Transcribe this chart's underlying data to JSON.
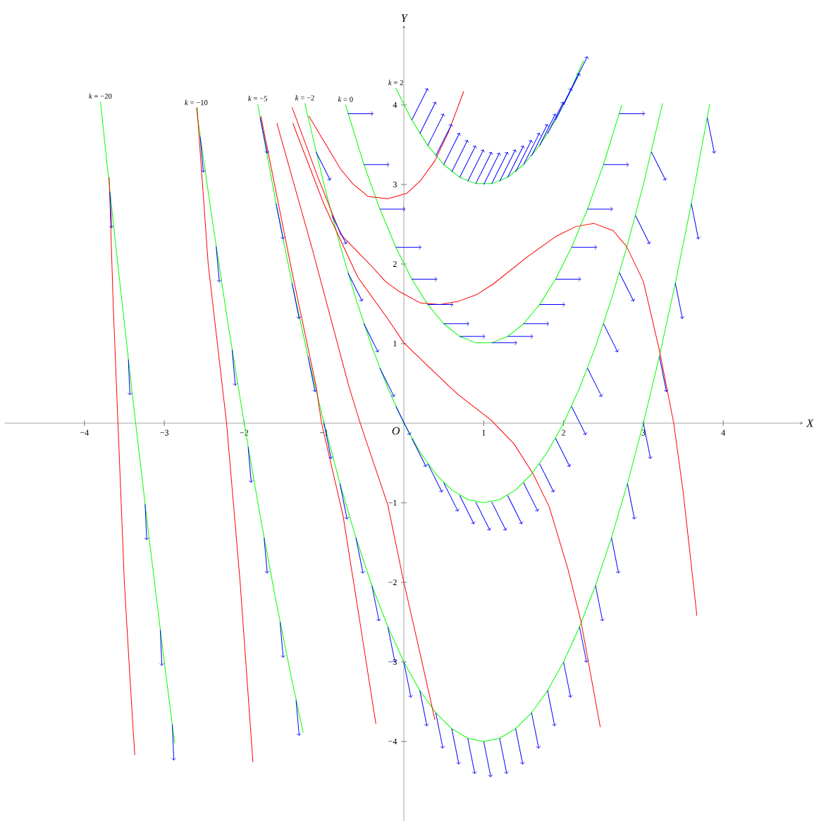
{
  "chart_data": {
    "type": "line",
    "xlabel": "X",
    "ylabel": "Y",
    "xlim": [
      -5,
      5
    ],
    "ylim": [
      -5,
      5
    ],
    "xticks": [
      {
        "value": -4,
        "label": "−4"
      },
      {
        "value": -3,
        "label": "−3"
      },
      {
        "value": -2,
        "label": "−2"
      },
      {
        "value": -1,
        "label": "−1"
      },
      {
        "value": 1,
        "label": "1"
      },
      {
        "value": 2,
        "label": "2"
      },
      {
        "value": 3,
        "label": "3"
      },
      {
        "value": 4,
        "label": "4"
      }
    ],
    "yticks": [
      {
        "value": -4,
        "label": "−4"
      },
      {
        "value": -3,
        "label": "−3"
      },
      {
        "value": -2,
        "label": "−2"
      },
      {
        "value": -1,
        "label": "−1"
      },
      {
        "value": 1,
        "label": "1"
      },
      {
        "value": 2,
        "label": "2"
      },
      {
        "value": 3,
        "label": "3"
      },
      {
        "value": 4,
        "label": "4"
      }
    ],
    "annotations": [
      {
        "text": "O",
        "x": 0,
        "y": 0
      }
    ],
    "series": [
      {
        "name": "*k* = −20",
        "color": "#00ff00",
        "x": [
          -3.8,
          -3.6,
          -3.4,
          -3.2,
          -3.0,
          -2.87
        ],
        "values": [
          4.04,
          2.16,
          0.36,
          -1.36,
          -3.0,
          -4.02
        ]
      },
      {
        "name": "*k* = −10",
        "color": "#00ff00",
        "x": [
          -2.6,
          -2.4,
          -2.2,
          -2.0,
          -1.8,
          -1.6,
          -1.4,
          -1.26
        ],
        "values": [
          3.96,
          2.56,
          1.24,
          0.0,
          -1.16,
          -2.24,
          -3.24,
          -3.89
        ]
      },
      {
        "name": "*k* = −5",
        "color": "#00ff00",
        "x": [
          -1.83,
          -1.6,
          -1.4,
          -1.2,
          -1.0,
          -0.8,
          -0.6,
          -0.4,
          -0.2,
          0,
          0.2,
          0.4,
          0.6,
          0.8,
          1.0,
          1.2,
          1.4,
          1.6,
          1.8,
          2.0,
          2.2,
          2.4,
          2.6,
          2.8,
          3.0,
          3.2,
          3.4,
          3.6,
          3.83
        ],
        "values": [
          4.01,
          2.76,
          1.76,
          0.84,
          0.0,
          -0.76,
          -1.44,
          -2.04,
          -2.56,
          -3.0,
          -3.36,
          -3.64,
          -3.84,
          -3.96,
          -4.0,
          -3.96,
          -3.84,
          -3.64,
          -3.36,
          -3.0,
          -2.56,
          -2.04,
          -1.44,
          -0.76,
          0.0,
          0.84,
          1.76,
          2.76,
          4.01
        ]
      },
      {
        "name": "*k* = −2",
        "color": "#00ff00",
        "x": [
          -1.24,
          -1.0,
          -0.8,
          -0.6,
          -0.4,
          -0.2,
          0,
          0.2,
          0.4,
          0.6,
          0.8,
          1.0,
          1.2,
          1.4,
          1.6,
          1.8,
          2.0,
          2.2,
          2.4,
          2.6,
          2.8,
          3.0,
          3.24
        ],
        "values": [
          4.02,
          3.0,
          2.24,
          1.56,
          0.96,
          0.44,
          0.0,
          -0.36,
          -0.64,
          -0.84,
          -0.96,
          -1.0,
          -0.96,
          -0.84,
          -0.64,
          -0.36,
          0.0,
          0.44,
          0.96,
          1.56,
          2.24,
          3.0,
          4.02
        ]
      },
      {
        "name": "*k* = 0",
        "color": "#00ff00",
        "x": [
          -0.73,
          -0.5,
          -0.3,
          -0.1,
          0.1,
          0.3,
          0.5,
          0.7,
          0.9,
          1.1,
          1.3,
          1.5,
          1.7,
          1.9,
          2.1,
          2.3,
          2.5,
          2.73
        ],
        "values": [
          4.0,
          3.25,
          2.69,
          2.21,
          1.81,
          1.49,
          1.25,
          1.09,
          1.01,
          1.01,
          1.09,
          1.25,
          1.49,
          1.81,
          2.21,
          2.69,
          3.25,
          4.0
        ]
      },
      {
        "name": "*k* = 2",
        "color": "#00ff00",
        "x": [
          -0.1,
          0.1,
          0.3,
          0.5,
          0.7,
          0.9,
          1.1,
          1.3,
          1.5,
          1.7,
          1.9,
          2.1,
          2.25
        ],
        "values": [
          4.21,
          3.81,
          3.49,
          3.25,
          3.09,
          3.01,
          3.01,
          3.09,
          3.25,
          3.49,
          3.81,
          4.21,
          4.56
        ]
      },
      {
        "color": "#ff0000",
        "x": [
          -3.69,
          -3.64,
          -3.58,
          -3.5,
          -3.43,
          -3.37
        ],
        "values": [
          3.09,
          1.5,
          0.0,
          -2.0,
          -3.2,
          -4.17
        ]
      },
      {
        "color": "#ff0000",
        "x": [
          -2.59,
          -2.45,
          -2.22,
          -2.05,
          -1.89
        ],
        "values": [
          3.97,
          2.0,
          0.0,
          -2.0,
          -4.26
        ]
      },
      {
        "color": "#ff0000",
        "x": [
          -1.79,
          -1.4,
          -1.1,
          -1.03,
          -0.76,
          -0.55,
          -0.35
        ],
        "values": [
          3.86,
          1.9,
          0.47,
          0.0,
          -1.17,
          -2.5,
          -3.78
        ]
      },
      {
        "color": "#ff0000",
        "x": [
          -1.59,
          -1.15,
          -0.69,
          -0.55,
          -0.2,
          0,
          0.2,
          0.39
        ],
        "values": [
          3.77,
          2.2,
          0.47,
          0.01,
          -1.03,
          -2.0,
          -2.88,
          -3.73
        ]
      },
      {
        "color": "#ff0000",
        "x": [
          -1.39,
          -1.0,
          -0.58,
          -0.2,
          0,
          0.3,
          0.56,
          0.68,
          1.09,
          1.38,
          1.62,
          1.82,
          2.06,
          2.22,
          2.46
        ],
        "values": [
          3.77,
          2.75,
          1.84,
          1.31,
          1.01,
          0.72,
          0.47,
          0.36,
          0.04,
          -0.26,
          -0.64,
          -1.05,
          -1.85,
          -2.5,
          -3.82
        ]
      },
      {
        "color": "#ff0000",
        "x": [
          -1.4,
          -1.08,
          -0.79,
          -0.41,
          -0.23,
          -0.05,
          0.21,
          0.45,
          0.68,
          0.92,
          1.12,
          1.56,
          1.91,
          2.15,
          2.38,
          2.62,
          2.79,
          3.0,
          3.2,
          3.38,
          3.5,
          3.67
        ],
        "values": [
          3.97,
          3.1,
          2.37,
          1.98,
          1.78,
          1.65,
          1.51,
          1.49,
          1.53,
          1.62,
          1.75,
          2.1,
          2.35,
          2.47,
          2.51,
          2.42,
          2.22,
          1.78,
          0.92,
          0.0,
          -0.88,
          -2.42
        ]
      },
      {
        "color": "#ff0000",
        "x": [
          -1.19,
          -0.79,
          -0.64,
          -0.45,
          -0.2,
          0.04,
          0.21,
          0.39,
          0.56,
          0.75
        ],
        "values": [
          3.86,
          3.19,
          3.01,
          2.85,
          2.82,
          2.89,
          3.05,
          3.3,
          3.66,
          4.17
        ]
      },
      {
        "color": "#0000ff",
        "x": [
          0.1,
          0.3,
          null,
          0.2,
          0.4,
          null,
          0.3,
          0.5,
          null,
          0.4,
          0.6,
          null,
          0.5,
          0.7,
          null,
          0.6,
          0.8,
          null,
          0.7,
          0.9,
          null,
          0.8,
          1.0,
          null,
          0.9,
          1.1,
          null,
          1.0,
          1.2,
          null,
          1.1,
          1.3,
          null,
          1.2,
          1.4,
          null,
          1.3,
          1.5,
          null,
          1.4,
          1.6,
          null,
          1.5,
          1.7,
          null,
          1.6,
          1.8,
          null,
          1.7,
          1.9,
          null,
          1.8,
          2.0,
          null,
          1.9,
          2.1,
          null,
          2.0,
          2.2,
          null,
          2.1,
          2.3,
          null,
          -0.7,
          -0.38,
          null,
          -0.5,
          -0.18,
          null,
          -0.3,
          0.02,
          null,
          -0.1,
          0.22,
          null,
          0.1,
          0.42,
          null,
          0.3,
          0.62,
          null,
          0.5,
          0.82,
          null,
          0.7,
          1.02,
          null,
          1.1,
          1.42,
          null,
          1.3,
          1.62,
          null,
          1.5,
          1.82,
          null,
          1.7,
          2.02,
          null,
          1.9,
          2.22,
          null,
          2.1,
          2.42,
          null,
          2.3,
          2.62,
          null,
          2.5,
          2.82,
          null,
          2.7,
          3.02,
          null,
          -1.1,
          -0.92,
          null,
          -0.9,
          -0.72,
          null,
          -0.7,
          -0.52,
          null,
          -0.5,
          -0.32,
          null,
          -0.3,
          -0.12,
          null,
          -0.1,
          0.08,
          null,
          0.1,
          0.28,
          null,
          0.3,
          0.48,
          null,
          0.5,
          0.68,
          null,
          0.7,
          0.88,
          null,
          0.9,
          1.08,
          null,
          1.1,
          1.28,
          null,
          1.3,
          1.48,
          null,
          1.5,
          1.68,
          null,
          1.7,
          1.88,
          null,
          1.9,
          2.08,
          null,
          2.1,
          2.28,
          null,
          2.3,
          2.48,
          null,
          2.5,
          2.68,
          null,
          2.7,
          2.88,
          null,
          2.9,
          3.08,
          null,
          3.1,
          3.28,
          null,
          -1.8,
          -1.71,
          null,
          -1.6,
          -1.51,
          null,
          -1.4,
          -1.31,
          null,
          -1.2,
          -1.11,
          null,
          -1.0,
          -0.91,
          null,
          -0.8,
          -0.71,
          null,
          -0.6,
          -0.51,
          null,
          -0.4,
          -0.31,
          null,
          -0.2,
          -0.11,
          null,
          0,
          0.09,
          null,
          0.2,
          0.29,
          null,
          0.4,
          0.49,
          null,
          0.6,
          0.69,
          null,
          0.8,
          0.89,
          null,
          1.0,
          1.09,
          null,
          1.2,
          1.29,
          null,
          1.4,
          1.49,
          null,
          1.6,
          1.69,
          null,
          1.8,
          1.89,
          null,
          2.0,
          2.09,
          null,
          2.2,
          2.29,
          null,
          2.4,
          2.49,
          null,
          2.6,
          2.69,
          null,
          2.8,
          2.89,
          null,
          3.0,
          3.09,
          null,
          3.2,
          3.29,
          null,
          3.4,
          3.49,
          null,
          3.6,
          3.69,
          null,
          3.8,
          3.89,
          null,
          -2.55,
          -2.51,
          null,
          -2.35,
          -2.31,
          null,
          -2.15,
          -2.11,
          null,
          -1.95,
          -1.91,
          null,
          -1.75,
          -1.71,
          null,
          -1.55,
          -1.51,
          null,
          -1.35,
          -1.31,
          null,
          -3.68,
          -3.66,
          null,
          -3.45,
          -3.43,
          null,
          -3.24,
          -3.22,
          null,
          -3.05,
          -3.03,
          null,
          -2.9,
          -2.88,
          null
        ],
        "values": [
          3.81,
          4.21,
          null,
          3.64,
          4.04,
          null,
          3.49,
          3.89,
          null,
          3.36,
          3.76,
          null,
          3.25,
          3.65,
          null,
          3.16,
          3.56,
          null,
          3.09,
          3.49,
          null,
          3.04,
          3.44,
          null,
          3.01,
          3.41,
          null,
          3.0,
          3.4,
          null,
          3.01,
          3.41,
          null,
          3.04,
          3.44,
          null,
          3.09,
          3.49,
          null,
          3.16,
          3.56,
          null,
          3.25,
          3.65,
          null,
          3.36,
          3.76,
          null,
          3.49,
          3.89,
          null,
          3.64,
          4.04,
          null,
          3.81,
          4.21,
          null,
          4.0,
          4.4,
          null,
          4.21,
          4.61,
          null,
          3.89,
          3.89,
          null,
          3.25,
          3.25,
          null,
          2.69,
          2.69,
          null,
          2.21,
          2.21,
          null,
          1.81,
          1.81,
          null,
          1.49,
          1.49,
          null,
          1.25,
          1.25,
          null,
          1.09,
          1.09,
          null,
          1.01,
          1.01,
          null,
          1.09,
          1.09,
          null,
          1.25,
          1.25,
          null,
          1.49,
          1.49,
          null,
          1.81,
          1.81,
          null,
          2.21,
          2.21,
          null,
          2.69,
          2.69,
          null,
          3.25,
          3.25,
          null,
          3.89,
          3.89,
          null,
          3.41,
          3.05,
          null,
          2.61,
          2.25,
          null,
          1.89,
          1.53,
          null,
          1.25,
          0.89,
          null,
          0.69,
          0.33,
          null,
          0.21,
          -0.15,
          null,
          -0.19,
          -0.55,
          null,
          -0.51,
          -0.87,
          null,
          -0.75,
          -1.11,
          null,
          -0.91,
          -1.27,
          null,
          -0.99,
          -1.35,
          null,
          -0.99,
          -1.35,
          null,
          -0.91,
          -1.27,
          null,
          -0.75,
          -1.11,
          null,
          -0.51,
          -0.87,
          null,
          -0.19,
          -0.55,
          null,
          0.21,
          -0.15,
          null,
          0.69,
          0.33,
          null,
          1.25,
          0.89,
          null,
          1.89,
          1.53,
          null,
          2.61,
          2.25,
          null,
          3.41,
          3.05,
          null,
          3.84,
          3.39,
          null,
          2.76,
          2.31,
          null,
          1.76,
          1.31,
          null,
          0.84,
          0.39,
          null,
          0.0,
          -0.45,
          null,
          -0.76,
          -1.21,
          null,
          -1.44,
          -1.89,
          null,
          -2.04,
          -2.49,
          null,
          -2.56,
          -3.01,
          null,
          -3.0,
          -3.45,
          null,
          -3.36,
          -3.81,
          null,
          -3.64,
          -4.09,
          null,
          -3.84,
          -4.29,
          null,
          -3.96,
          -4.41,
          null,
          -4.0,
          -4.45,
          null,
          -3.96,
          -4.41,
          null,
          -3.84,
          -4.29,
          null,
          -3.64,
          -4.09,
          null,
          -3.36,
          -3.81,
          null,
          -3.0,
          -3.45,
          null,
          -2.56,
          -3.01,
          null,
          -2.04,
          -2.49,
          null,
          -1.44,
          -1.89,
          null,
          -0.76,
          -1.21,
          null,
          0.0,
          -0.45,
          null,
          0.84,
          0.39,
          null,
          1.76,
          1.31,
          null,
          2.76,
          2.31,
          null,
          3.84,
          3.39,
          null,
          3.6,
          3.15,
          null,
          2.22,
          1.77,
          null,
          0.92,
          0.47,
          null,
          -0.3,
          -0.75,
          null,
          -1.44,
          -1.89,
          null,
          -2.5,
          -2.95,
          null,
          -3.48,
          -3.93,
          null,
          2.9,
          2.45,
          null,
          0.8,
          0.35,
          null,
          -1.02,
          -1.47,
          null,
          -2.6,
          -3.05,
          null,
          -3.79,
          -4.24,
          null
        ]
      }
    ]
  }
}
